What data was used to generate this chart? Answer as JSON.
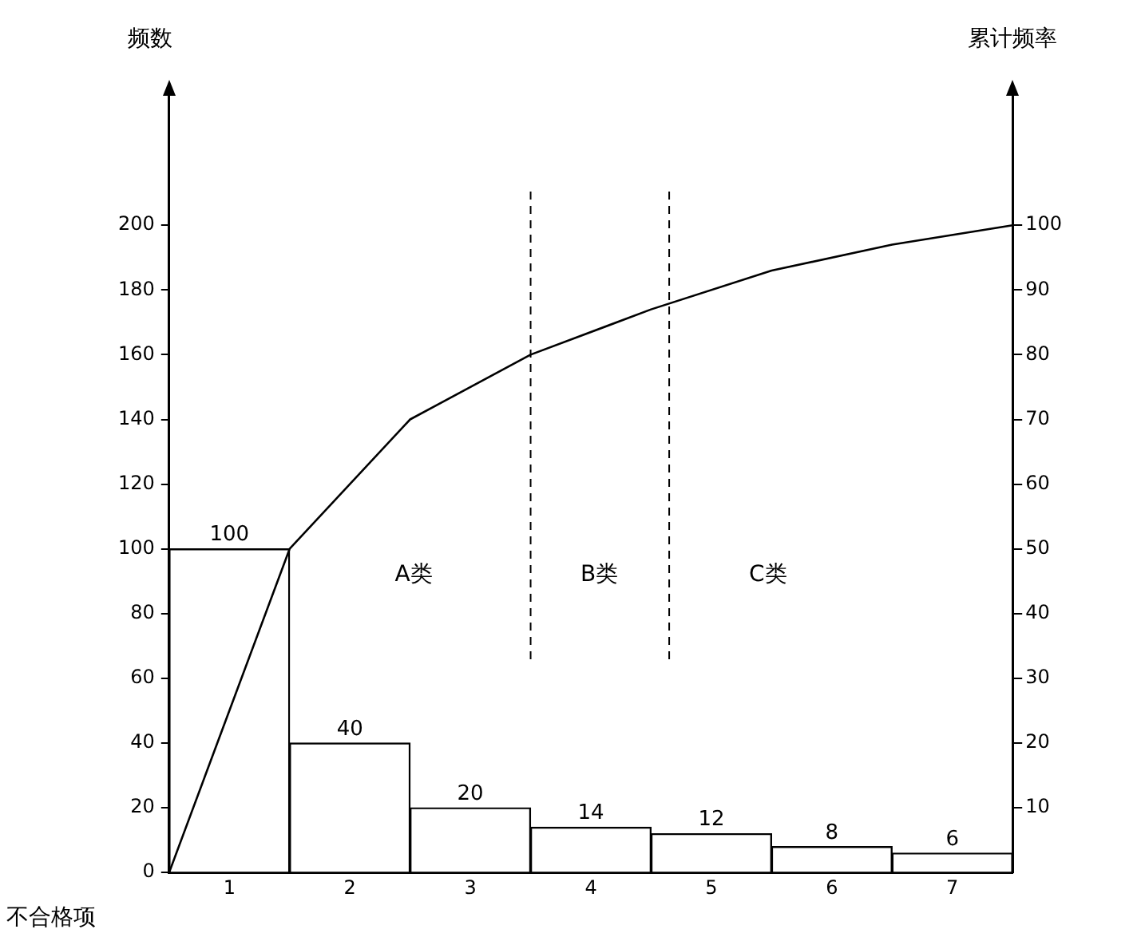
{
  "chart_data": {
    "type": "bar",
    "xlabel": "不合格项",
    "ylabel": "频数",
    "y2label": "累计频率",
    "x": [
      1,
      2,
      3,
      4,
      5,
      6,
      7
    ],
    "xlim": [
      0.5,
      7.5
    ],
    "xticks": [
      1,
      2,
      3,
      4,
      5,
      6,
      7
    ],
    "series": [
      {
        "color": "#ffffff",
        "values": [
          100,
          40,
          20,
          14,
          12,
          8,
          6
        ],
        "value_labels": [
          "100",
          "40",
          "20",
          "14",
          "12",
          "8",
          "6"
        ]
      },
      {
        "type": "line",
        "axis": "y2",
        "color": "#000000",
        "x": [
          0.5,
          1.5,
          2.5,
          3.5,
          4.5,
          5.5,
          6.5,
          7.5
        ],
        "values": [
          0,
          50,
          70,
          80,
          87,
          93,
          97,
          100
        ]
      }
    ],
    "ylim": [
      0,
      240
    ],
    "yticks": [
      0,
      20,
      40,
      60,
      80,
      100,
      120,
      140,
      160,
      180,
      200
    ],
    "y2lim": [
      0,
      120
    ],
    "y2ticks": [
      10,
      20,
      30,
      40,
      50,
      60,
      70,
      80,
      90,
      100
    ],
    "ref_lines": [
      {
        "axis": "x",
        "value": 3.5,
        "line_style": "dashed"
      },
      {
        "axis": "x",
        "value": 4.65,
        "line_style": "dashed"
      }
    ],
    "annotations": [
      "A类",
      "B类",
      "C类"
    ],
    "grid": false,
    "legend": false,
    "marker": "none",
    "line_style": "solid"
  }
}
